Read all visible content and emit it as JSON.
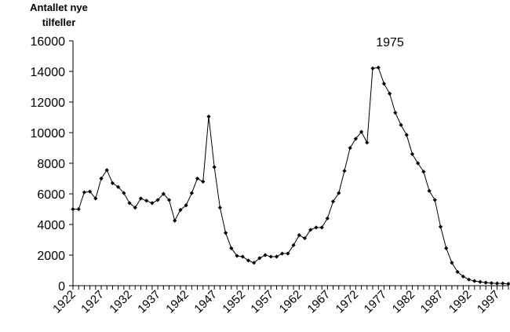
{
  "chart_data": {
    "type": "line",
    "title": "",
    "ylabel": [
      "Antallet nye",
      "tilfeller"
    ],
    "xlabel": "",
    "annotation": "1975",
    "ylim": [
      0,
      16000
    ],
    "yticks": [
      0,
      2000,
      4000,
      6000,
      8000,
      10000,
      12000,
      14000,
      16000
    ],
    "xticks": [
      1922,
      1927,
      1932,
      1937,
      1942,
      1947,
      1952,
      1957,
      1962,
      1967,
      1972,
      1977,
      1982,
      1987,
      1992,
      1997
    ],
    "grid": false,
    "line_color": "#000000",
    "x": [
      1922,
      1923,
      1924,
      1925,
      1926,
      1927,
      1928,
      1929,
      1930,
      1931,
      1932,
      1933,
      1934,
      1935,
      1936,
      1937,
      1938,
      1939,
      1940,
      1941,
      1942,
      1943,
      1944,
      1945,
      1946,
      1947,
      1948,
      1949,
      1950,
      1951,
      1952,
      1953,
      1954,
      1955,
      1956,
      1957,
      1958,
      1959,
      1960,
      1961,
      1962,
      1963,
      1964,
      1965,
      1966,
      1967,
      1968,
      1969,
      1970,
      1971,
      1972,
      1973,
      1974,
      1975,
      1976,
      1977,
      1978,
      1979,
      1980,
      1981,
      1982,
      1983,
      1984,
      1985,
      1986,
      1987,
      1988,
      1989,
      1990,
      1991,
      1992,
      1993,
      1994,
      1995,
      1996,
      1997,
      1998,
      1999
    ],
    "series": [
      {
        "values": [
          5000,
          5000,
          6100,
          6150,
          5700,
          7000,
          7550,
          6700,
          6450,
          6050,
          5400,
          5100,
          5700,
          5550,
          5400,
          5600,
          6000,
          5600,
          4250,
          4950,
          5250,
          6050,
          7000,
          6800,
          11050,
          7750,
          5100,
          3450,
          2450,
          1950,
          1900,
          1650,
          1500,
          1800,
          2000,
          1900,
          1900,
          2100,
          2100,
          2650,
          3300,
          3100,
          3650,
          3800,
          3800,
          4400,
          5500,
          6050,
          7500,
          9000,
          9600,
          10050,
          9350,
          14200,
          14250,
          13200,
          12550,
          11300,
          10500,
          9850,
          8600,
          8000,
          7450,
          6200,
          5600,
          3850,
          2450,
          1500,
          900,
          600,
          400,
          300,
          250,
          200,
          170,
          150,
          150,
          120
        ]
      }
    ]
  }
}
